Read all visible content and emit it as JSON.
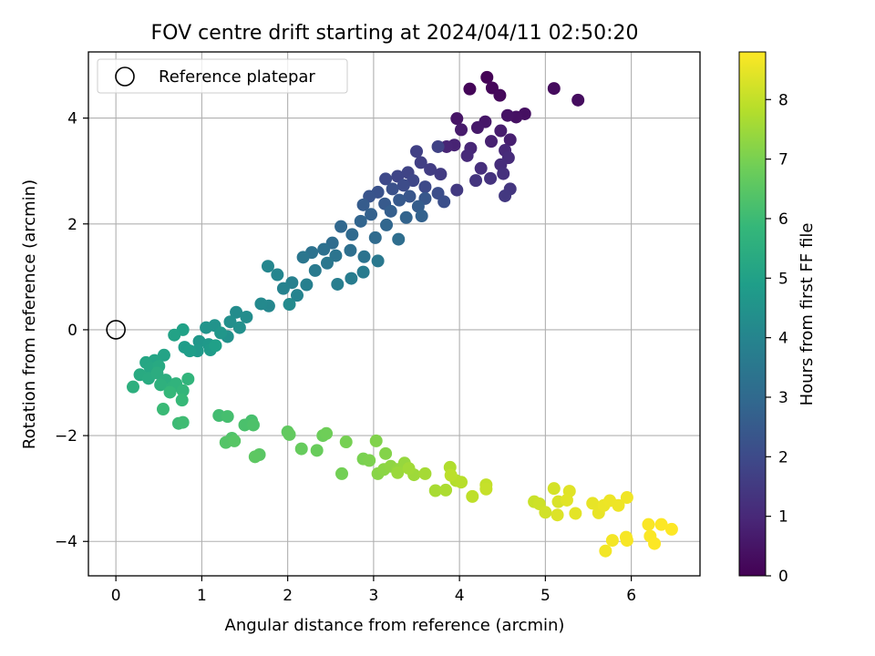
{
  "chart_data": {
    "type": "scatter",
    "title": "FOV centre drift starting at 2024/04/11 02:50:20",
    "xlabel": "Angular distance from reference (arcmin)",
    "ylabel": "Rotation from reference (arcmin)",
    "xlim": [
      -0.32,
      6.8
    ],
    "ylim": [
      -4.65,
      5.25
    ],
    "x_ticks": [
      0,
      1,
      2,
      3,
      4,
      5,
      6
    ],
    "y_ticks": [
      -4,
      -2,
      0,
      2,
      4
    ],
    "x_tick_labels": [
      "0",
      "1",
      "2",
      "3",
      "4",
      "5",
      "6"
    ],
    "y_tick_labels": [
      "−4",
      "−2",
      "0",
      "2",
      "4"
    ],
    "grid": true,
    "legend": {
      "placement": "top-left",
      "entries": [
        "Reference platepar"
      ]
    },
    "reference_point": {
      "x": 0,
      "y": 0
    },
    "colorbar": {
      "label": "Hours from first FF file",
      "range": [
        0,
        8.8
      ],
      "ticks": [
        0,
        1,
        2,
        3,
        4,
        5,
        6,
        7,
        8
      ],
      "tick_labels": [
        "0",
        "1",
        "2",
        "3",
        "4",
        "5",
        "6",
        "7",
        "8"
      ],
      "colormap": "viridis",
      "color_stops": [
        "#440154",
        "#482878",
        "#3e4989",
        "#31688e",
        "#26828e",
        "#1f9e89",
        "#35b779",
        "#6ece58",
        "#b5de2b",
        "#fde725"
      ]
    },
    "points": [
      {
        "x": 4.32,
        "y": 4.77,
        "h": 0.05
      },
      {
        "x": 4.12,
        "y": 4.55,
        "h": 0.1
      },
      {
        "x": 4.38,
        "y": 4.57,
        "h": 0.15
      },
      {
        "x": 4.47,
        "y": 4.43,
        "h": 0.2
      },
      {
        "x": 5.1,
        "y": 4.56,
        "h": 0.25
      },
      {
        "x": 5.38,
        "y": 4.34,
        "h": 0.3
      },
      {
        "x": 4.76,
        "y": 4.08,
        "h": 0.35
      },
      {
        "x": 4.66,
        "y": 4.02,
        "h": 0.4
      },
      {
        "x": 4.56,
        "y": 4.05,
        "h": 0.45
      },
      {
        "x": 3.97,
        "y": 3.99,
        "h": 0.5
      },
      {
        "x": 4.3,
        "y": 3.93,
        "h": 0.55
      },
      {
        "x": 4.21,
        "y": 3.82,
        "h": 0.6
      },
      {
        "x": 4.02,
        "y": 3.78,
        "h": 0.65
      },
      {
        "x": 4.48,
        "y": 3.76,
        "h": 0.7
      },
      {
        "x": 4.59,
        "y": 3.59,
        "h": 0.75
      },
      {
        "x": 4.37,
        "y": 3.56,
        "h": 0.8
      },
      {
        "x": 3.94,
        "y": 3.49,
        "h": 0.85
      },
      {
        "x": 3.85,
        "y": 3.46,
        "h": 0.9
      },
      {
        "x": 4.13,
        "y": 3.43,
        "h": 0.95
      },
      {
        "x": 4.53,
        "y": 3.39,
        "h": 1.0
      },
      {
        "x": 4.09,
        "y": 3.29,
        "h": 1.05
      },
      {
        "x": 4.57,
        "y": 3.25,
        "h": 1.1
      },
      {
        "x": 4.48,
        "y": 3.12,
        "h": 1.15
      },
      {
        "x": 4.25,
        "y": 3.05,
        "h": 1.2
      },
      {
        "x": 4.51,
        "y": 2.95,
        "h": 1.25
      },
      {
        "x": 4.36,
        "y": 2.86,
        "h": 1.3
      },
      {
        "x": 4.19,
        "y": 2.82,
        "h": 1.35
      },
      {
        "x": 4.59,
        "y": 2.66,
        "h": 1.4
      },
      {
        "x": 4.53,
        "y": 2.53,
        "h": 1.45
      },
      {
        "x": 3.97,
        "y": 2.64,
        "h": 1.5
      },
      {
        "x": 3.78,
        "y": 2.94,
        "h": 1.55
      },
      {
        "x": 3.66,
        "y": 3.03,
        "h": 1.6
      },
      {
        "x": 3.55,
        "y": 3.16,
        "h": 1.65
      },
      {
        "x": 3.5,
        "y": 3.37,
        "h": 1.7
      },
      {
        "x": 3.75,
        "y": 3.46,
        "h": 1.75
      },
      {
        "x": 3.4,
        "y": 2.97,
        "h": 1.8
      },
      {
        "x": 3.28,
        "y": 2.9,
        "h": 1.85
      },
      {
        "x": 3.46,
        "y": 2.82,
        "h": 1.9
      },
      {
        "x": 3.14,
        "y": 2.85,
        "h": 1.95
      },
      {
        "x": 3.6,
        "y": 2.7,
        "h": 2.0
      },
      {
        "x": 3.35,
        "y": 2.73,
        "h": 2.05
      },
      {
        "x": 3.75,
        "y": 2.58,
        "h": 2.1
      },
      {
        "x": 3.82,
        "y": 2.42,
        "h": 2.15
      },
      {
        "x": 3.22,
        "y": 2.66,
        "h": 2.2
      },
      {
        "x": 3.05,
        "y": 2.6,
        "h": 2.25
      },
      {
        "x": 2.95,
        "y": 2.52,
        "h": 2.3
      },
      {
        "x": 3.42,
        "y": 2.52,
        "h": 2.35
      },
      {
        "x": 3.6,
        "y": 2.48,
        "h": 2.4
      },
      {
        "x": 3.3,
        "y": 2.45,
        "h": 2.45
      },
      {
        "x": 3.13,
        "y": 2.38,
        "h": 2.5
      },
      {
        "x": 2.88,
        "y": 2.36,
        "h": 2.55
      },
      {
        "x": 3.52,
        "y": 2.33,
        "h": 2.6
      },
      {
        "x": 3.2,
        "y": 2.24,
        "h": 2.65
      },
      {
        "x": 2.97,
        "y": 2.18,
        "h": 2.7
      },
      {
        "x": 3.56,
        "y": 2.15,
        "h": 2.75
      },
      {
        "x": 3.38,
        "y": 2.12,
        "h": 2.8
      },
      {
        "x": 2.85,
        "y": 2.05,
        "h": 2.85
      },
      {
        "x": 3.15,
        "y": 1.98,
        "h": 2.9
      },
      {
        "x": 2.62,
        "y": 1.95,
        "h": 2.95
      },
      {
        "x": 2.75,
        "y": 1.8,
        "h": 3.0
      },
      {
        "x": 3.02,
        "y": 1.74,
        "h": 3.05
      },
      {
        "x": 2.52,
        "y": 1.64,
        "h": 3.1
      },
      {
        "x": 3.29,
        "y": 1.71,
        "h": 3.15
      },
      {
        "x": 2.73,
        "y": 1.5,
        "h": 3.2
      },
      {
        "x": 2.42,
        "y": 1.52,
        "h": 3.25
      },
      {
        "x": 2.28,
        "y": 1.46,
        "h": 3.3
      },
      {
        "x": 2.89,
        "y": 1.38,
        "h": 3.35
      },
      {
        "x": 2.56,
        "y": 1.4,
        "h": 3.4
      },
      {
        "x": 2.18,
        "y": 1.37,
        "h": 3.45
      },
      {
        "x": 2.46,
        "y": 1.26,
        "h": 3.5
      },
      {
        "x": 3.05,
        "y": 1.3,
        "h": 3.55
      },
      {
        "x": 2.32,
        "y": 1.12,
        "h": 3.6
      },
      {
        "x": 2.88,
        "y": 1.09,
        "h": 3.65
      },
      {
        "x": 2.74,
        "y": 0.97,
        "h": 3.7
      },
      {
        "x": 2.58,
        "y": 0.86,
        "h": 3.75
      },
      {
        "x": 2.22,
        "y": 0.85,
        "h": 3.8
      },
      {
        "x": 2.05,
        "y": 0.89,
        "h": 3.85
      },
      {
        "x": 1.95,
        "y": 0.78,
        "h": 3.9
      },
      {
        "x": 2.11,
        "y": 0.65,
        "h": 3.95
      },
      {
        "x": 1.88,
        "y": 1.04,
        "h": 4.0
      },
      {
        "x": 1.77,
        "y": 1.2,
        "h": 4.05
      },
      {
        "x": 1.78,
        "y": 0.45,
        "h": 4.1
      },
      {
        "x": 1.69,
        "y": 0.49,
        "h": 4.15
      },
      {
        "x": 2.02,
        "y": 0.48,
        "h": 4.2
      },
      {
        "x": 1.4,
        "y": 0.33,
        "h": 4.25
      },
      {
        "x": 1.52,
        "y": 0.24,
        "h": 4.3
      },
      {
        "x": 1.33,
        "y": 0.15,
        "h": 4.35
      },
      {
        "x": 1.44,
        "y": 0.04,
        "h": 4.4
      },
      {
        "x": 1.3,
        "y": -0.13,
        "h": 4.45
      },
      {
        "x": 1.15,
        "y": 0.08,
        "h": 4.5
      },
      {
        "x": 1.05,
        "y": 0.04,
        "h": 4.55
      },
      {
        "x": 1.22,
        "y": -0.06,
        "h": 4.6
      },
      {
        "x": 0.97,
        "y": -0.22,
        "h": 4.65
      },
      {
        "x": 1.08,
        "y": -0.28,
        "h": 4.7
      },
      {
        "x": 0.95,
        "y": -0.4,
        "h": 4.75
      },
      {
        "x": 1.1,
        "y": -0.38,
        "h": 4.8
      },
      {
        "x": 0.8,
        "y": -0.33,
        "h": 4.85
      },
      {
        "x": 0.86,
        "y": -0.4,
        "h": 4.9
      },
      {
        "x": 1.16,
        "y": -0.3,
        "h": 4.95
      },
      {
        "x": 0.78,
        "y": 0.0,
        "h": 5.0
      },
      {
        "x": 0.68,
        "y": -0.1,
        "h": 5.05
      },
      {
        "x": 0.56,
        "y": -0.48,
        "h": 5.1
      },
      {
        "x": 0.45,
        "y": -0.58,
        "h": 5.15
      },
      {
        "x": 0.35,
        "y": -0.62,
        "h": 5.2
      },
      {
        "x": 0.4,
        "y": -0.72,
        "h": 5.25
      },
      {
        "x": 0.5,
        "y": -0.69,
        "h": 5.3
      },
      {
        "x": 0.28,
        "y": -0.85,
        "h": 5.35
      },
      {
        "x": 0.38,
        "y": -0.92,
        "h": 5.4
      },
      {
        "x": 0.48,
        "y": -0.82,
        "h": 5.45
      },
      {
        "x": 0.58,
        "y": -0.95,
        "h": 5.5
      },
      {
        "x": 0.2,
        "y": -1.08,
        "h": 5.55
      },
      {
        "x": 0.52,
        "y": -1.04,
        "h": 5.6
      },
      {
        "x": 0.65,
        "y": -1.1,
        "h": 5.65
      },
      {
        "x": 0.7,
        "y": -1.02,
        "h": 5.7
      },
      {
        "x": 0.84,
        "y": -0.93,
        "h": 5.75
      },
      {
        "x": 0.78,
        "y": -1.15,
        "h": 5.8
      },
      {
        "x": 0.63,
        "y": -1.18,
        "h": 5.85
      },
      {
        "x": 0.77,
        "y": -1.33,
        "h": 5.9
      },
      {
        "x": 0.55,
        "y": -1.5,
        "h": 5.95
      },
      {
        "x": 0.73,
        "y": -1.77,
        "h": 6.0
      },
      {
        "x": 0.78,
        "y": -1.75,
        "h": 6.05
      },
      {
        "x": 1.2,
        "y": -1.62,
        "h": 6.1
      },
      {
        "x": 1.3,
        "y": -1.64,
        "h": 6.15
      },
      {
        "x": 1.58,
        "y": -1.72,
        "h": 6.2
      },
      {
        "x": 1.5,
        "y": -1.8,
        "h": 6.25
      },
      {
        "x": 1.6,
        "y": -1.8,
        "h": 6.3
      },
      {
        "x": 1.35,
        "y": -2.05,
        "h": 6.35
      },
      {
        "x": 1.28,
        "y": -2.13,
        "h": 6.4
      },
      {
        "x": 1.38,
        "y": -2.1,
        "h": 6.45
      },
      {
        "x": 1.67,
        "y": -2.36,
        "h": 6.5
      },
      {
        "x": 1.62,
        "y": -2.4,
        "h": 6.55
      },
      {
        "x": 2.0,
        "y": -1.93,
        "h": 6.6
      },
      {
        "x": 2.02,
        "y": -1.98,
        "h": 6.65
      },
      {
        "x": 2.16,
        "y": -2.25,
        "h": 6.7
      },
      {
        "x": 2.34,
        "y": -2.28,
        "h": 6.75
      },
      {
        "x": 2.41,
        "y": -2.0,
        "h": 6.8
      },
      {
        "x": 2.45,
        "y": -1.96,
        "h": 6.85
      },
      {
        "x": 2.63,
        "y": -2.72,
        "h": 6.9
      },
      {
        "x": 2.68,
        "y": -2.12,
        "h": 6.95
      },
      {
        "x": 2.88,
        "y": -2.44,
        "h": 7.0
      },
      {
        "x": 2.95,
        "y": -2.47,
        "h": 7.05
      },
      {
        "x": 3.03,
        "y": -2.1,
        "h": 7.1
      },
      {
        "x": 3.14,
        "y": -2.34,
        "h": 7.15
      },
      {
        "x": 3.05,
        "y": -2.72,
        "h": 7.2
      },
      {
        "x": 3.12,
        "y": -2.64,
        "h": 7.25
      },
      {
        "x": 3.2,
        "y": -2.58,
        "h": 7.3
      },
      {
        "x": 3.28,
        "y": -2.64,
        "h": 7.35
      },
      {
        "x": 3.36,
        "y": -2.52,
        "h": 7.4
      },
      {
        "x": 3.28,
        "y": -2.7,
        "h": 7.45
      },
      {
        "x": 3.47,
        "y": -2.74,
        "h": 7.5
      },
      {
        "x": 3.41,
        "y": -2.62,
        "h": 7.55
      },
      {
        "x": 3.6,
        "y": -2.72,
        "h": 7.6
      },
      {
        "x": 3.72,
        "y": -3.04,
        "h": 7.65
      },
      {
        "x": 3.84,
        "y": -3.03,
        "h": 7.7
      },
      {
        "x": 3.89,
        "y": -2.6,
        "h": 7.75
      },
      {
        "x": 3.96,
        "y": -2.85,
        "h": 7.8
      },
      {
        "x": 4.02,
        "y": -2.88,
        "h": 7.85
      },
      {
        "x": 3.9,
        "y": -2.75,
        "h": 7.9
      },
      {
        "x": 4.15,
        "y": -3.15,
        "h": 7.95
      },
      {
        "x": 4.31,
        "y": -2.93,
        "h": 8.0
      },
      {
        "x": 4.31,
        "y": -3.01,
        "h": 8.05
      },
      {
        "x": 4.87,
        "y": -3.25,
        "h": 8.1
      },
      {
        "x": 4.93,
        "y": -3.29,
        "h": 8.15
      },
      {
        "x": 5.0,
        "y": -3.45,
        "h": 8.2
      },
      {
        "x": 5.1,
        "y": -3.0,
        "h": 8.25
      },
      {
        "x": 5.15,
        "y": -3.25,
        "h": 8.3
      },
      {
        "x": 5.14,
        "y": -3.5,
        "h": 8.35
      },
      {
        "x": 5.28,
        "y": -3.05,
        "h": 8.4
      },
      {
        "x": 5.25,
        "y": -3.22,
        "h": 8.42
      },
      {
        "x": 5.35,
        "y": -3.47,
        "h": 8.45
      },
      {
        "x": 5.55,
        "y": -3.28,
        "h": 8.5
      },
      {
        "x": 5.62,
        "y": -3.46,
        "h": 8.52
      },
      {
        "x": 5.68,
        "y": -3.32,
        "h": 8.55
      },
      {
        "x": 5.75,
        "y": -3.23,
        "h": 8.58
      },
      {
        "x": 5.85,
        "y": -3.32,
        "h": 8.6
      },
      {
        "x": 5.95,
        "y": -3.17,
        "h": 8.62
      },
      {
        "x": 5.7,
        "y": -4.18,
        "h": 8.65
      },
      {
        "x": 5.78,
        "y": -3.98,
        "h": 8.68
      },
      {
        "x": 5.94,
        "y": -3.92,
        "h": 8.7
      },
      {
        "x": 5.95,
        "y": -3.98,
        "h": 8.72
      },
      {
        "x": 6.2,
        "y": -3.68,
        "h": 8.74
      },
      {
        "x": 6.22,
        "y": -3.9,
        "h": 8.76
      },
      {
        "x": 6.27,
        "y": -4.04,
        "h": 8.78
      },
      {
        "x": 6.35,
        "y": -3.68,
        "h": 8.79
      },
      {
        "x": 6.47,
        "y": -3.77,
        "h": 8.8
      }
    ]
  }
}
